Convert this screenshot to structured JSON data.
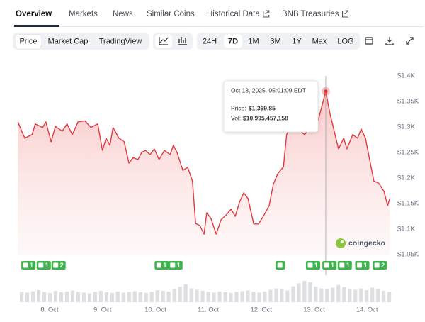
{
  "tabs": [
    "Overview",
    "Markets",
    "News",
    "Similar Coins",
    "Historical Data",
    "BNB Treasuries"
  ],
  "toolbar": {
    "views": [
      "Price",
      "Market Cap",
      "TradingView"
    ],
    "periods": [
      "24H",
      "7D",
      "1M",
      "3M",
      "1Y",
      "Max",
      "LOG"
    ]
  },
  "tooltip": {
    "date": "Oct 13, 2025, 05:01:09 EDT",
    "price_label": "Price:",
    "price": "$1,369.85",
    "vol_label": "Vol:",
    "vol": "$10,995,457,158"
  },
  "watermark": "coingecko",
  "chart_data": {
    "type": "line",
    "x": [
      7.4,
      7.53,
      7.67,
      7.73,
      7.87,
      7.93,
      8.03,
      8.11,
      8.24,
      8.33,
      8.43,
      8.54,
      8.67,
      8.78,
      8.91,
      9.0,
      9.07,
      9.14,
      9.2,
      9.31,
      9.41,
      9.5,
      9.58,
      9.67,
      9.74,
      9.81,
      9.9,
      9.98,
      10.07,
      10.17,
      10.28,
      10.34,
      10.41,
      10.52,
      10.61,
      10.7,
      10.76,
      10.84,
      10.92,
      10.97,
      11.05,
      11.15,
      11.24,
      11.35,
      11.43,
      11.51,
      11.59,
      11.67,
      11.75,
      11.86,
      11.95,
      12.04,
      12.15,
      12.23,
      12.31,
      12.42,
      12.48,
      12.58,
      12.66,
      12.74,
      12.82,
      12.93,
      13.02,
      13.11,
      13.22,
      13.3,
      13.38,
      13.46,
      13.56,
      13.62,
      13.73,
      13.82,
      13.89,
      13.97,
      14.05,
      14.13,
      14.22,
      14.32,
      14.39,
      14.43
    ],
    "series": [
      {
        "color": "#e0393e",
        "values": [
          1310,
          1278,
          1285,
          1306,
          1299,
          1310,
          1271,
          1301,
          1292,
          1306,
          1285,
          1310,
          1312,
          1299,
          1306,
          1254,
          1278,
          1264,
          1299,
          1278,
          1271,
          1229,
          1240,
          1236,
          1250,
          1254,
          1246,
          1257,
          1236,
          1254,
          1246,
          1264,
          1250,
          1215,
          1221,
          1194,
          1111,
          1107,
          1090,
          1132,
          1121,
          1090,
          1118,
          1129,
          1139,
          1125,
          1153,
          1171,
          1160,
          1110,
          1110,
          1125,
          1146,
          1188,
          1208,
          1222,
          1285,
          1306,
          1301,
          1292,
          1285,
          1301,
          1292,
          1326,
          1369.85,
          1326,
          1292,
          1257,
          1278,
          1257,
          1285,
          1278,
          1296,
          1278,
          1236,
          1194,
          1190,
          1174,
          1146,
          1160
        ]
      }
    ],
    "xlim": [
      7.4,
      14.43
    ],
    "xticks": [
      {
        "value": 8,
        "label": "8. Oct"
      },
      {
        "value": 9,
        "label": "9. Oct"
      },
      {
        "value": 10,
        "label": "10. Oct"
      },
      {
        "value": 11,
        "label": "11. Oct"
      },
      {
        "value": 12,
        "label": "12. Oct"
      },
      {
        "value": 13,
        "label": "13. Oct"
      },
      {
        "value": 14,
        "label": "14. Oct"
      }
    ],
    "ylim": [
      1050,
      1400
    ],
    "yticks": [
      {
        "value": 1050,
        "label": "$1.05K"
      },
      {
        "value": 1100,
        "label": "$1.1K"
      },
      {
        "value": 1150,
        "label": "$1.15K"
      },
      {
        "value": 1200,
        "label": "$1.2K"
      },
      {
        "value": 1250,
        "label": "$1.25K"
      },
      {
        "value": 1300,
        "label": "$1.3K"
      },
      {
        "value": 1350,
        "label": "$1.35K"
      },
      {
        "value": 1400,
        "label": "$1.4K"
      }
    ],
    "events": {
      "x": [
        7.6,
        7.89,
        8.17,
        10.12,
        10.38,
        12.36,
        12.98,
        13.29,
        13.58,
        13.91,
        14.24
      ],
      "labels": [
        1,
        1,
        2,
        1,
        1,
        null,
        1,
        1,
        1,
        1,
        2
      ]
    },
    "volume": {
      "color": "#dedfe2",
      "ylim": [
        0,
        70
      ],
      "values": [
        30,
        28,
        32,
        35,
        30,
        27,
        33,
        29,
        31,
        34,
        30,
        28,
        26,
        30,
        33,
        29,
        27,
        31,
        28,
        30,
        32,
        29,
        27,
        30,
        35,
        33,
        31,
        38,
        45,
        52,
        40,
        36,
        33,
        30,
        28,
        31,
        29,
        27,
        30,
        32,
        34,
        30,
        28,
        31,
        36,
        40,
        38,
        34,
        46,
        55,
        62,
        58,
        45,
        40,
        38,
        42,
        50,
        44,
        39,
        36,
        40,
        35,
        42,
        38,
        33,
        30
      ]
    }
  }
}
